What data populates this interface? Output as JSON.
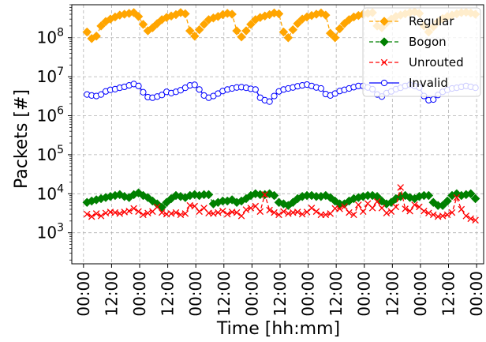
{
  "chart_data": {
    "type": "line",
    "title": "",
    "xlabel": "Time [hh:mm]",
    "ylabel": "Packets [#]",
    "yscale": "log",
    "ylim": [
      160,
      700000000
    ],
    "xlim_hours": [
      -10,
      342
    ],
    "grid": true,
    "legend_position": "top-right",
    "x_tick_labels": [
      "00:00",
      "12:00",
      "00:00",
      "12:00",
      "00:00",
      "12:00",
      "00:00",
      "12:00",
      "00:00",
      "12:00",
      "00:00",
      "12:00",
      "00:00",
      "12:00",
      "00:00"
    ],
    "x_tick_hours": [
      0,
      24,
      48,
      72,
      96,
      120,
      144,
      168,
      192,
      216,
      240,
      264,
      288,
      312,
      336
    ],
    "y_tick_labels": [
      {
        "base": "10",
        "exp": "3",
        "value": 1000
      },
      {
        "base": "10",
        "exp": "4",
        "value": 10000
      },
      {
        "base": "10",
        "exp": "5",
        "value": 100000
      },
      {
        "base": "10",
        "exp": "6",
        "value": 1000000
      },
      {
        "base": "10",
        "exp": "7",
        "value": 10000000
      },
      {
        "base": "10",
        "exp": "8",
        "value": 100000000
      }
    ],
    "x_hours": [
      3,
      7,
      11,
      15,
      19,
      23,
      27,
      31,
      35,
      39,
      43,
      47,
      51,
      55,
      59,
      63,
      67,
      71,
      75,
      79,
      83,
      87,
      91,
      95,
      99,
      103,
      107,
      111,
      115,
      119,
      123,
      127,
      131,
      135,
      139,
      143,
      147,
      151,
      155,
      159,
      163,
      167,
      171,
      175,
      179,
      183,
      187,
      191,
      195,
      199,
      203,
      207,
      211,
      215,
      219,
      223,
      227,
      231,
      235,
      239,
      243,
      247,
      251,
      255,
      259,
      263,
      267,
      271,
      275,
      279,
      283,
      287,
      291,
      295,
      299,
      303,
      307,
      311,
      315,
      319,
      323,
      327,
      331,
      335
    ],
    "series": [
      {
        "name": "Regular",
        "color": "#FFA500",
        "marker": "diamond",
        "line_style": "dashed",
        "values": [
          140000000,
          95000000,
          110000000,
          200000000,
          260000000,
          300000000,
          340000000,
          380000000,
          400000000,
          420000000,
          440000000,
          350000000,
          220000000,
          150000000,
          180000000,
          230000000,
          290000000,
          330000000,
          360000000,
          390000000,
          440000000,
          410000000,
          150000000,
          110000000,
          160000000,
          220000000,
          290000000,
          320000000,
          350000000,
          390000000,
          420000000,
          400000000,
          150000000,
          105000000,
          150000000,
          220000000,
          290000000,
          330000000,
          360000000,
          390000000,
          430000000,
          410000000,
          140000000,
          100000000,
          160000000,
          230000000,
          300000000,
          340000000,
          370000000,
          400000000,
          430000000,
          380000000,
          130000000,
          100000000,
          170000000,
          230000000,
          290000000,
          340000000,
          370000000,
          400000000,
          420000000,
          440000000,
          200000000,
          180000000,
          240000000,
          300000000,
          350000000,
          380000000,
          410000000,
          440000000,
          460000000,
          420000000,
          200000000,
          140000000,
          190000000,
          260000000,
          310000000,
          350000000,
          380000000,
          410000000,
          440000000,
          450000000,
          430000000,
          400000000
        ]
      },
      {
        "name": "Bogon",
        "color": "#008000",
        "marker": "diamond",
        "line_style": "dashed",
        "values": [
          6000,
          6500,
          7000,
          7500,
          8000,
          8500,
          9000,
          9500,
          8500,
          8000,
          9500,
          10500,
          9000,
          8000,
          6500,
          5500,
          4500,
          6000,
          7500,
          9000,
          8500,
          8000,
          9000,
          9500,
          9000,
          9500,
          9500,
          5500,
          6000,
          6500,
          6500,
          7000,
          6000,
          6500,
          7500,
          9000,
          10000,
          9500,
          9500,
          10000,
          9000,
          6000,
          5500,
          5000,
          6000,
          7500,
          8500,
          9000,
          9000,
          8500,
          8500,
          9000,
          8000,
          6500,
          5500,
          5500,
          6500,
          7500,
          8000,
          8500,
          9000,
          9000,
          8500,
          6500,
          5500,
          6000,
          7500,
          8500,
          9000,
          8000,
          7500,
          8500,
          9000,
          9000,
          6000,
          5000,
          5000,
          6500,
          9000,
          10000,
          9000,
          9500,
          10000,
          7500
        ]
      },
      {
        "name": "Unrouted",
        "color": "#FF0000",
        "marker": "x",
        "line_style": "dashed",
        "values": [
          3000,
          2600,
          3100,
          2700,
          3200,
          3400,
          3300,
          3100,
          3400,
          3600,
          4200,
          3500,
          2900,
          3200,
          3500,
          4600,
          3300,
          3000,
          3100,
          3300,
          2900,
          3100,
          5000,
          4800,
          3500,
          4300,
          3200,
          3100,
          3300,
          3600,
          3000,
          3400,
          3300,
          2700,
          3900,
          4300,
          4800,
          3500,
          9500,
          3800,
          3300,
          2900,
          3500,
          3100,
          3300,
          3400,
          3000,
          3400,
          4300,
          3500,
          2900,
          2900,
          3100,
          4200,
          4100,
          4700,
          3300,
          2900,
          5200,
          3500,
          5600,
          4300,
          6300,
          4300,
          3200,
          3500,
          4600,
          14500,
          4100,
          3600,
          5200,
          4600,
          3600,
          3200,
          2900,
          2600,
          2700,
          2900,
          3300,
          8000,
          4000,
          2700,
          2300,
          2100
        ]
      },
      {
        "name": "Invalid",
        "color": "#0000FF",
        "marker": "circle-open",
        "line_style": "solid",
        "values": [
          3500000,
          3300000,
          3200000,
          3500000,
          4200000,
          4600000,
          4800000,
          5200000,
          5500000,
          6000000,
          6500000,
          5800000,
          4000000,
          3000000,
          2900000,
          3100000,
          3400000,
          4100000,
          3800000,
          4100000,
          4500000,
          5200000,
          6000000,
          6200000,
          4700000,
          3300000,
          2900000,
          3200000,
          3700000,
          4300000,
          4700000,
          5000000,
          5300000,
          5400000,
          5200000,
          4900000,
          4700000,
          2900000,
          2500000,
          2300000,
          3200000,
          4200000,
          4700000,
          5000000,
          5300000,
          5700000,
          6000000,
          6300000,
          5800000,
          5300000,
          5000000,
          3600000,
          3300000,
          3700000,
          4300000,
          4600000,
          5000000,
          5400000,
          5800000,
          5800000,
          5300000,
          4800000,
          3500000,
          3100000,
          3800000,
          4200000,
          4800000,
          5200000,
          5800000,
          6200000,
          5800000,
          5300000,
          3200000,
          2500000,
          2600000,
          3400000,
          4100000,
          4600000,
          5000000,
          5200000,
          5500000,
          5800000,
          5500000,
          5200000
        ]
      }
    ]
  }
}
